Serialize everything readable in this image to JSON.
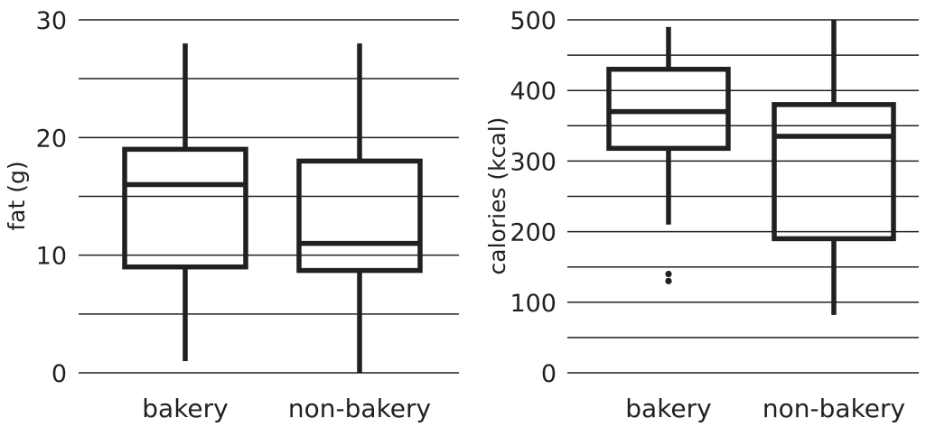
{
  "chart_data": [
    {
      "type": "box",
      "title": "",
      "xlabel": "",
      "ylabel": "fat (g)",
      "ylim": [
        0,
        30
      ],
      "yticks": [
        0,
        10,
        20,
        30
      ],
      "ygrid": [
        0,
        5,
        10,
        15,
        20,
        25,
        30
      ],
      "grid": true,
      "categories": [
        "bakery",
        "non-bakery"
      ],
      "boxes": [
        {
          "category": "bakery",
          "whisker_low": 1,
          "q1": 9,
          "median": 16,
          "q3": 19,
          "whisker_high": 28,
          "outliers": []
        },
        {
          "category": "non-bakery",
          "whisker_low": 0,
          "q1": 8.7,
          "median": 11,
          "q3": 18,
          "whisker_high": 28,
          "outliers": []
        }
      ]
    },
    {
      "type": "box",
      "title": "",
      "xlabel": "",
      "ylabel": "calories (kcal)",
      "ylim": [
        0,
        500
      ],
      "yticks": [
        0,
        100,
        200,
        300,
        400,
        500
      ],
      "ygrid": [
        0,
        50,
        100,
        150,
        200,
        250,
        300,
        350,
        400,
        450,
        500
      ],
      "grid": true,
      "categories": [
        "bakery",
        "non-bakery"
      ],
      "boxes": [
        {
          "category": "bakery",
          "whisker_low": 210,
          "q1": 318,
          "median": 370,
          "q3": 430,
          "whisker_high": 490,
          "outliers": [
            130,
            140
          ]
        },
        {
          "category": "non-bakery",
          "whisker_low": 82,
          "q1": 190,
          "median": 335,
          "q3": 380,
          "whisker_high": 500,
          "outliers": []
        }
      ]
    }
  ]
}
